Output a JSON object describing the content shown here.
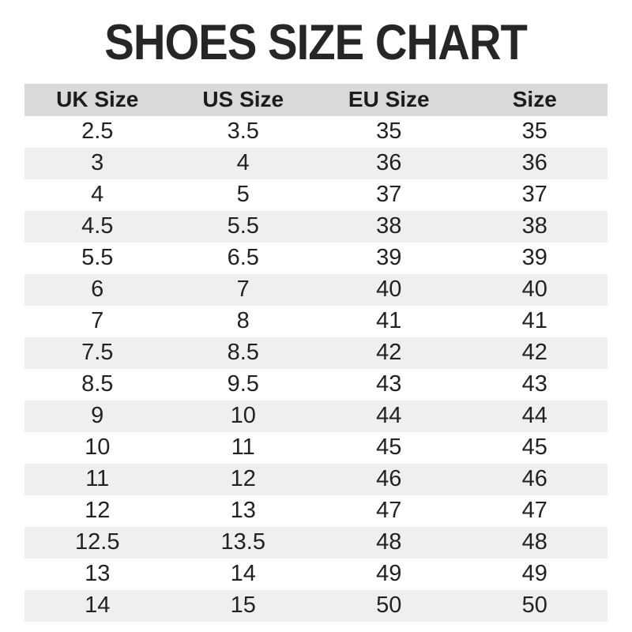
{
  "title": "SHOES SIZE CHART",
  "colors": {
    "background": "#ffffff",
    "title_text": "#262626",
    "header_row_bg": "#d9d9d9",
    "stripe_row_bg": "#efefef",
    "cell_text": "#222222"
  },
  "chart_data": {
    "type": "table",
    "title": "SHOES SIZE CHART",
    "columns": [
      "UK Size",
      "US Size",
      "EU Size",
      "Size"
    ],
    "rows": [
      [
        "2.5",
        "3.5",
        "35",
        "35"
      ],
      [
        "3",
        "4",
        "36",
        "36"
      ],
      [
        "4",
        "5",
        "37",
        "37"
      ],
      [
        "4.5",
        "5.5",
        "38",
        "38"
      ],
      [
        "5.5",
        "6.5",
        "39",
        "39"
      ],
      [
        "6",
        "7",
        "40",
        "40"
      ],
      [
        "7",
        "8",
        "41",
        "41"
      ],
      [
        "7.5",
        "8.5",
        "42",
        "42"
      ],
      [
        "8.5",
        "9.5",
        "43",
        "43"
      ],
      [
        "9",
        "10",
        "44",
        "44"
      ],
      [
        "10",
        "11",
        "45",
        "45"
      ],
      [
        "11",
        "12",
        "46",
        "46"
      ],
      [
        "12",
        "13",
        "47",
        "47"
      ],
      [
        "12.5",
        "13.5",
        "48",
        "48"
      ],
      [
        "13",
        "14",
        "49",
        "49"
      ],
      [
        "14",
        "15",
        "50",
        "50"
      ]
    ],
    "layout": {
      "stripe_pattern": "even-rows-gray",
      "column_alignment": "center",
      "grid_lines": "none"
    }
  }
}
